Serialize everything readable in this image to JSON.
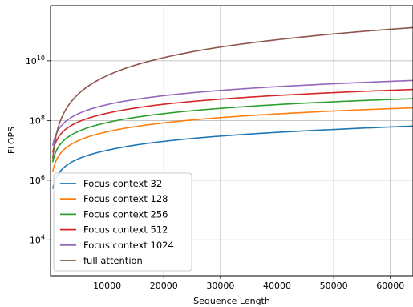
{
  "chart_data": {
    "type": "line",
    "title": "",
    "xlabel": "Sequence Length",
    "ylabel": "FLOPS",
    "xlim": [
      1,
      64000
    ],
    "xticks": [
      10000,
      20000,
      30000,
      40000,
      50000,
      60000
    ],
    "xtick_labels": [
      "10000",
      "20000",
      "30000",
      "40000",
      "50000",
      "60000"
    ],
    "yscale": "log",
    "ylim_log10": [
      2.8,
      11.85
    ],
    "yticks": [
      {
        "base": "10",
        "exp": "4"
      },
      {
        "base": "10",
        "exp": "6"
      },
      {
        "base": "10",
        "exp": "8"
      },
      {
        "base": "10",
        "exp": "10"
      }
    ],
    "ytick_values_log10": [
      4,
      6,
      8,
      10
    ],
    "grid": true,
    "legend_position": "lower-left",
    "series": [
      {
        "name": "Focus context 32",
        "color": "#1f77b4",
        "x": [
          1000,
          10000,
          20000,
          30000,
          40000,
          50000,
          64000
        ],
        "y": [
          1200000.0,
          10000000.0,
          20000000.0,
          30000000.0,
          40000000.0,
          50000000.0,
          65000000.0
        ]
      },
      {
        "name": "Focus context 128",
        "color": "#ff7f0e",
        "x": [
          1000,
          10000,
          20000,
          30000,
          40000,
          50000,
          64000
        ],
        "y": [
          4600000.0,
          42000000.0,
          83000000.0,
          125000000.0,
          166000000.0,
          208000000.0,
          266000000.0
        ]
      },
      {
        "name": "Focus context 256",
        "color": "#2ca02c",
        "x": [
          1000,
          10000,
          20000,
          30000,
          40000,
          50000,
          64000
        ],
        "y": [
          9500000.0,
          85000000.0,
          170000000.0,
          255000000.0,
          340000000.0,
          425000000.0,
          540000000.0
        ]
      },
      {
        "name": "Focus context 512",
        "color": "#d62728",
        "x": [
          1000,
          10000,
          20000,
          30000,
          40000,
          50000,
          64000
        ],
        "y": [
          20000000.0,
          175000000.0,
          350000000.0,
          520000000.0,
          690000000.0,
          860000000.0,
          1100000000.0
        ]
      },
      {
        "name": "Focus context 1024",
        "color": "#9467bd",
        "x": [
          1000,
          10000,
          20000,
          30000,
          40000,
          50000,
          64000
        ],
        "y": [
          35000000.0,
          340000000.0,
          680000000.0,
          1020000000.0,
          1360000000.0,
          1700000000.0,
          2200000000.0
        ]
      },
      {
        "name": "full attention",
        "color": "#8c564b",
        "x": [
          1000,
          5000,
          10000,
          20000,
          30000,
          40000,
          50000,
          64000
        ],
        "y": [
          32000000.0,
          800000000.0,
          3200000000.0,
          12800000000.0,
          29000000000.0,
          51000000000.0,
          80000000000.0,
          130000000000.0
        ]
      }
    ]
  }
}
